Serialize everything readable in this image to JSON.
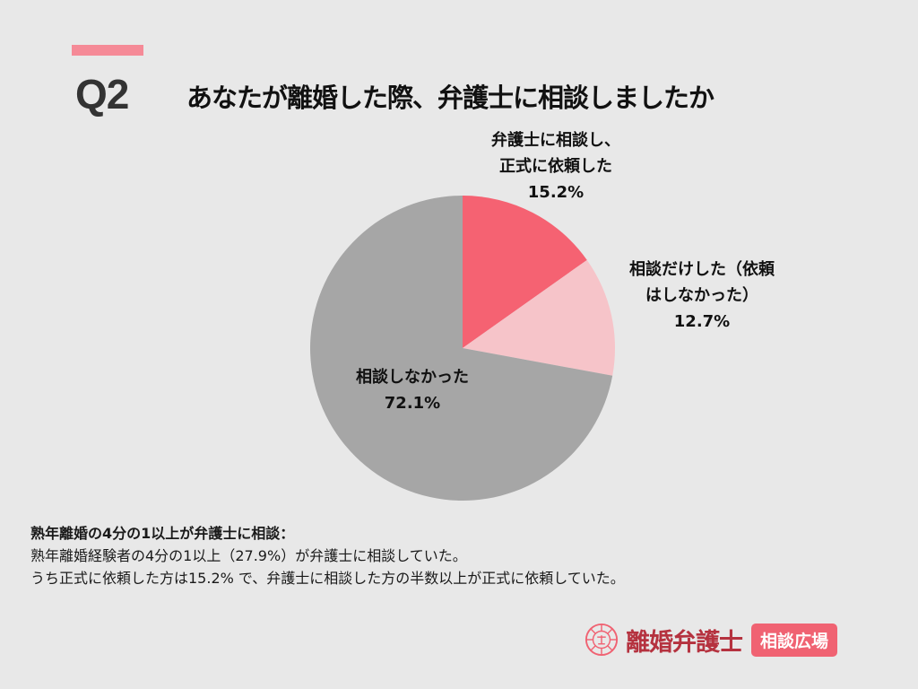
{
  "header": {
    "question_number": "Q2",
    "title": "あなたが離婚した際、弁護士に相談しましたか",
    "accent_color": "#f58a97"
  },
  "chart_data": {
    "type": "pie",
    "title": "あなたが離婚した際、弁護士に相談しましたか",
    "categories": [
      "弁護士に相談し、正式に依頼した",
      "相談だけした（依頼はしなかった）",
      "相談しなかった"
    ],
    "values": [
      15.2,
      12.7,
      72.1
    ],
    "unit": "%",
    "colors": [
      "#f56272",
      "#f6c4c9",
      "#a6a6a6"
    ],
    "start_angle": "12 o'clock, clockwise",
    "legend": "none (direct labels)"
  },
  "labels": [
    {
      "line1": "弁護士に相談し、",
      "line2": "正式に依頼した",
      "value": "15.2%"
    },
    {
      "line1": "相談だけした（依頼",
      "line2": "はしなかった）",
      "value": "12.7%"
    },
    {
      "line1": "相談しなかった",
      "value": "72.1%"
    }
  ],
  "note": {
    "heading": "熟年離婚の4分の1以上が弁護士に相談：",
    "line1": "熟年離婚経験者の4分の1以上（27.9%）が弁護士に相談していた。",
    "line2": "うち正式に依頼した方は15.2% で、弁護士に相談した方の半数以上が正式に依頼していた。"
  },
  "brand": {
    "name": "離婚弁護士",
    "tag": "相談広場"
  }
}
